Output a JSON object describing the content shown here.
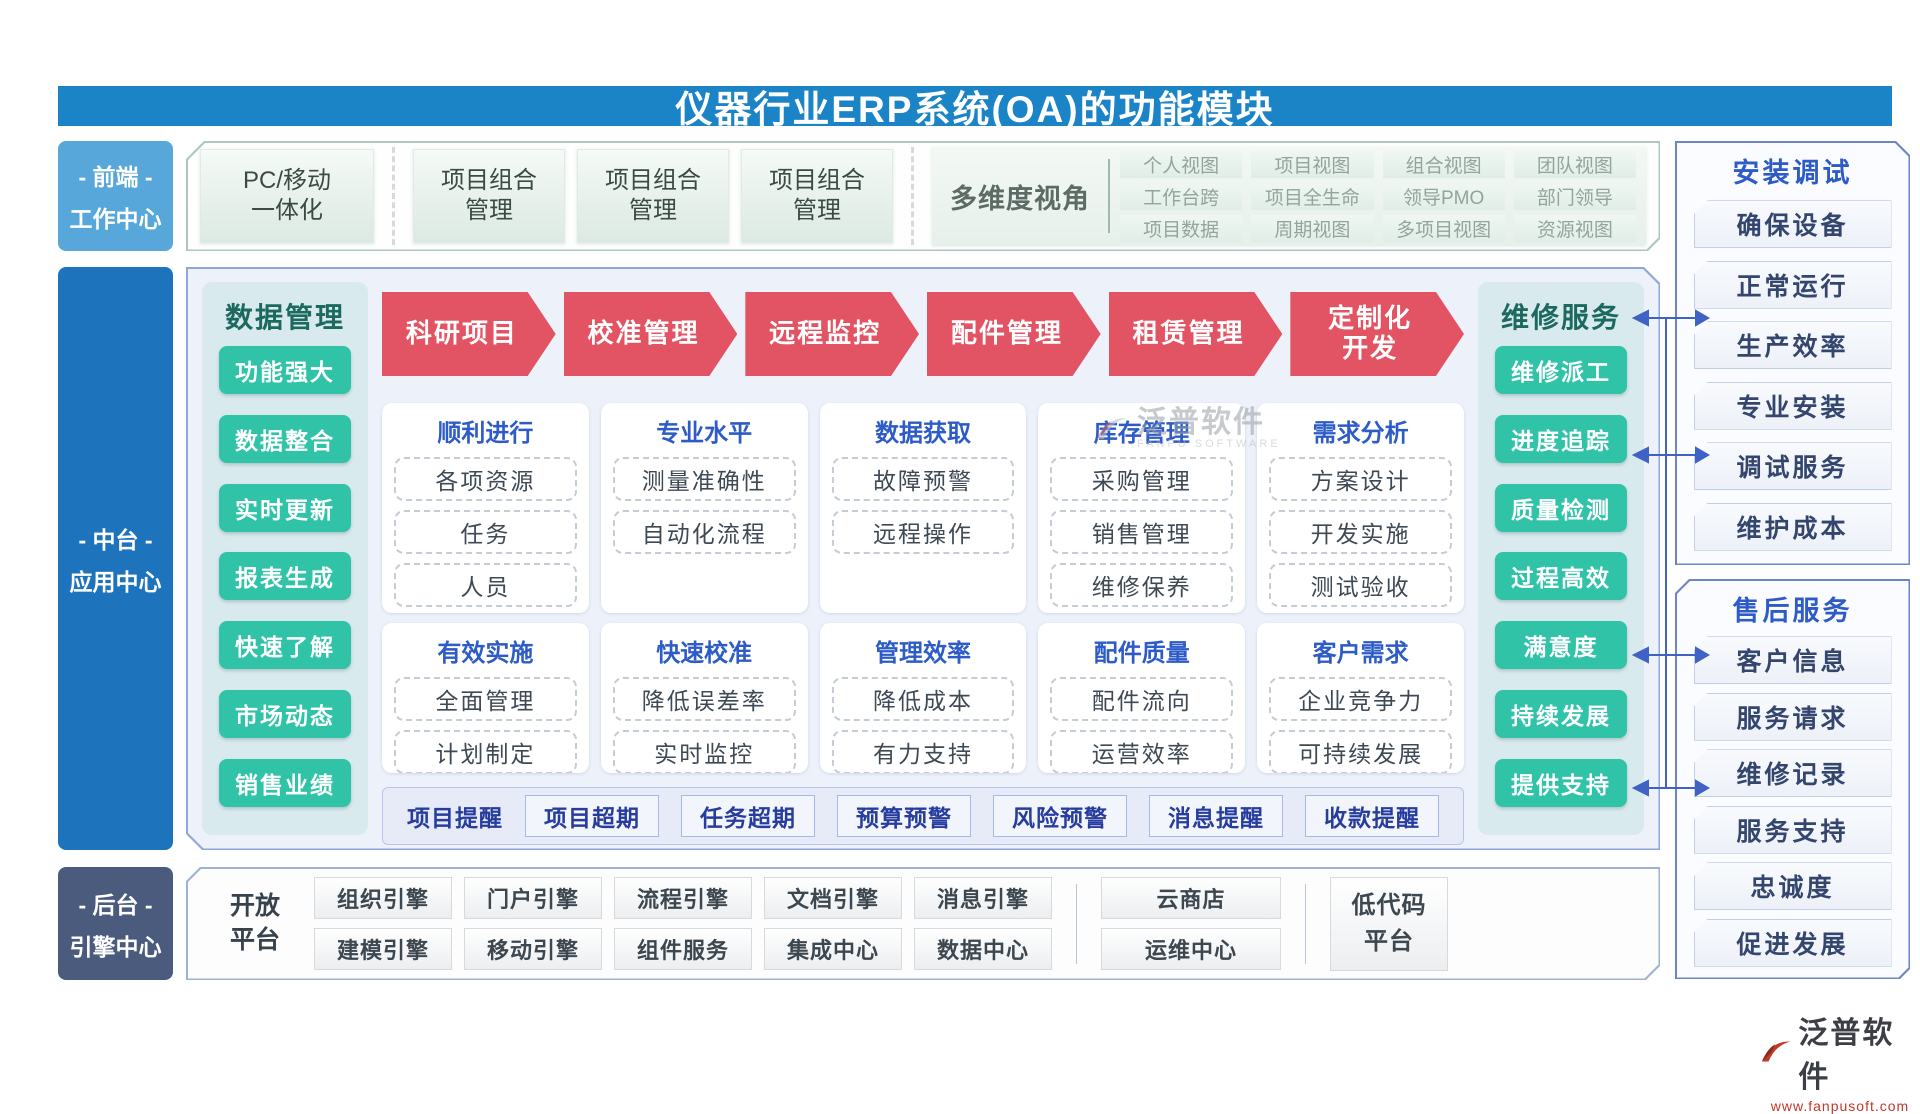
{
  "colors": {
    "title_bar": "#1a84c6",
    "front_box": "#57a7da",
    "middle_box": "#1e74bc",
    "back_box": "#4a5b7d",
    "teal_button": "#30c3a8",
    "red_banner": "#e25463",
    "blue_heading": "#2d5bc7",
    "connector": "#3f62c4"
  },
  "title_bar": {
    "title": "仪器行业ERP系统(OA)的功能模块"
  },
  "sidebar": {
    "front": {
      "line1": "- 前端 -",
      "line2": "工作中心"
    },
    "middle": {
      "line1": "- 中台 -",
      "line2": "应用中心"
    },
    "back": {
      "line1": "- 后台 -",
      "line2": "引擎中心"
    }
  },
  "top_strip": {
    "pc_box": {
      "line1": "PC/移动",
      "line2": "一体化"
    },
    "portfolio_boxes": [
      {
        "line1": "项目组合",
        "line2": "管理"
      },
      {
        "line1": "项目组合",
        "line2": "管理"
      },
      {
        "line1": "项目组合",
        "line2": "管理"
      }
    ],
    "multi_view": {
      "label": "多维度视角",
      "columns": [
        {
          "rows": [
            "个人视图",
            "工作台跨",
            "项目数据"
          ]
        },
        {
          "rows": [
            "项目视图",
            "项目全生命",
            "周期视图"
          ]
        },
        {
          "rows": [
            "组合视图",
            "领导PMO",
            "多项目视图"
          ]
        },
        {
          "rows": [
            "团队视图",
            "部门领导",
            "资源视图"
          ]
        }
      ]
    }
  },
  "data_panel": {
    "title": "数据管理",
    "buttons": [
      "功能强大",
      "数据整合",
      "实时更新",
      "报表生成",
      "快速了解",
      "市场动态",
      "销售业绩"
    ]
  },
  "service_panel": {
    "title": "维修服务",
    "buttons": [
      "维修派工",
      "进度追踪",
      "质量检测",
      "过程高效",
      "满意度",
      "持续发展",
      "提供支持"
    ]
  },
  "center": {
    "banners": [
      {
        "line1": "科研项目",
        "line2": ""
      },
      {
        "line1": "校准管理",
        "line2": ""
      },
      {
        "line1": "远程监控",
        "line2": ""
      },
      {
        "line1": "配件管理",
        "line2": ""
      },
      {
        "line1": "租赁管理",
        "line2": ""
      },
      {
        "line1": "定制化",
        "line2": "开发"
      }
    ],
    "cards": [
      {
        "title": "顺利进行",
        "items": [
          "各项资源",
          "任务",
          "人员"
        ]
      },
      {
        "title": "专业水平",
        "items": [
          "测量准确性",
          "自动化流程"
        ]
      },
      {
        "title": "数据获取",
        "items": [
          "故障预警",
          "远程操作"
        ]
      },
      {
        "title": "库存管理",
        "items": [
          "采购管理",
          "销售管理",
          "维修保养"
        ]
      },
      {
        "title": "需求分析",
        "items": [
          "方案设计",
          "开发实施",
          "测试验收"
        ]
      },
      {
        "title": "有效实施",
        "items": [
          "全面管理",
          "计划制定"
        ]
      },
      {
        "title": "快速校准",
        "items": [
          "降低误差率",
          "实时监控"
        ]
      },
      {
        "title": "管理效率",
        "items": [
          "降低成本",
          "有力支持"
        ]
      },
      {
        "title": "配件质量",
        "items": [
          "配件流向",
          "运营效率"
        ]
      },
      {
        "title": "客户需求",
        "items": [
          "企业竞争力",
          "可持续发展"
        ]
      }
    ],
    "alerts": {
      "label": "项目提醒",
      "items": [
        "项目超期",
        "任务超期",
        "预算预警",
        "风险预警",
        "消息提醒",
        "收款提醒"
      ]
    }
  },
  "bottom_strip": {
    "label": {
      "line1": "开放",
      "line2": "平台"
    },
    "engines_row1": [
      "组织引擎",
      "门户引擎",
      "流程引擎",
      "文档引擎",
      "消息引擎"
    ],
    "engines_row2": [
      "建模引擎",
      "移动引擎",
      "组件服务",
      "集成中心",
      "数据中心"
    ],
    "cloud_boxes": [
      "云商店",
      "运维中心"
    ],
    "low_code": "低代码平台"
  },
  "right_panels": [
    {
      "title": "安装调试",
      "items": [
        "确保设备",
        "正常运行",
        "生产效率",
        "专业安装",
        "调试服务",
        "维护成本"
      ]
    },
    {
      "title": "售后服务",
      "items": [
        "客户信息",
        "服务请求",
        "维修记录",
        "服务支持",
        "忠诚度",
        "促进发展"
      ]
    }
  ],
  "watermark": {
    "text": "泛普软件",
    "sub": "FANPU SOFTWARE"
  },
  "logo": {
    "text": "泛普软件",
    "url": "www.fanpusoft.com"
  }
}
